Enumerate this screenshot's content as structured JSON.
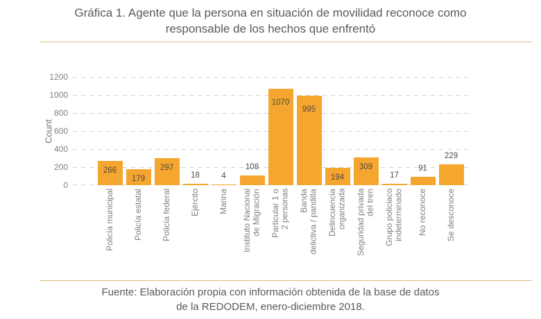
{
  "title": {
    "line1": "Gráfica 1. Agente que la persona en situación de movilidad reconoce como",
    "line2": "responsable de los hechos que enfrentó"
  },
  "footer": {
    "line1": "Fuente: Elaboración propia con información obtenida de la base de datos",
    "line2": "de la REDODEM, enero-diciembre 2018."
  },
  "colors": {
    "bar": "#F4A62F",
    "divider": "#DDB97E",
    "grid": "#D2D2D2",
    "title_text": "#595959",
    "axis_text": "#7F7F7F",
    "value_label": "#4F4A41"
  },
  "chart_data": {
    "type": "bar",
    "title": "Gráfica 1. Agente que la persona en situación de movilidad reconoce como responsable de los hechos que enfrentó",
    "xlabel": "",
    "ylabel": "Count",
    "ylim": [
      0,
      1200
    ],
    "yticks": [
      0,
      200,
      400,
      600,
      800,
      1000,
      1200
    ],
    "grid": "horizontal-dashed",
    "legend": "none",
    "categories": [
      "Policía municipal",
      "Policía estatal",
      "Policía federal",
      "Ejército",
      "Marina",
      "Instituto Nacional de Migración",
      "Particular 1 o 2 personas",
      "Banda delictiva / pandilla",
      "Delincuencia organizada",
      "Seguridad privada del tren",
      "Grupo policiaco indeterminado",
      "No reconoce",
      "Se desconoce"
    ],
    "category_lines": [
      [
        "Policía municipal"
      ],
      [
        "Policía estatal"
      ],
      [
        "Policía federal"
      ],
      [
        "Ejército"
      ],
      [
        "Marina"
      ],
      [
        "Instituto Nacional",
        "de Migración"
      ],
      [
        "Particular 1 o",
        "2 personas"
      ],
      [
        "Banda",
        "delictiva / pandilla"
      ],
      [
        "Delincuencia",
        "organizada"
      ],
      [
        "Seguridad privada",
        "del tren"
      ],
      [
        "Grupo policiaco",
        "indeterminado"
      ],
      [
        "No reconoce"
      ],
      [
        "Se desconoce"
      ]
    ],
    "values": [
      266,
      179,
      297,
      18,
      4,
      108,
      1070,
      995,
      194,
      309,
      17,
      91,
      229
    ],
    "value_label_inside": [
      true,
      true,
      true,
      false,
      false,
      false,
      true,
      true,
      true,
      true,
      false,
      false,
      false
    ],
    "source": "Fuente: Elaboración propia con información obtenida de la base de datos de la REDODEM, enero-diciembre 2018."
  }
}
